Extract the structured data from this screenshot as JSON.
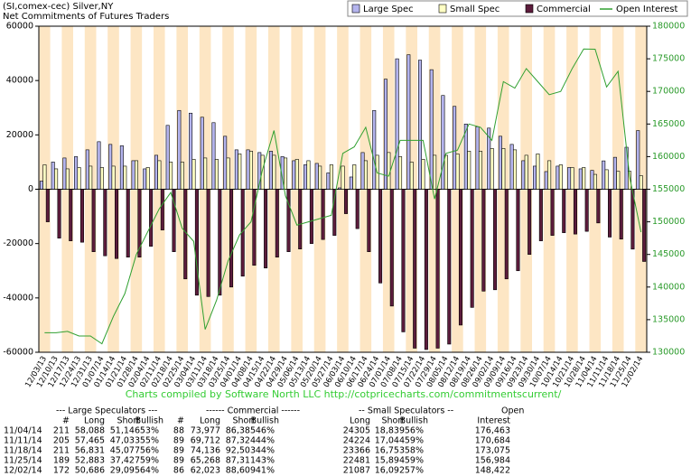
{
  "chart_data": {
    "type": "bar",
    "title": "(SI,comex-cec) Silver,NY",
    "subtitle": "Net Commitments of Futures Traders",
    "credit": "Charts compiled by Software North LLC  http://cotpricecharts.com/commitmentscurrent/",
    "categories": [
      "12/03/13",
      "12/10/13",
      "12/17/13",
      "12/24/13",
      "12/31/13",
      "01/07/14",
      "01/14/14",
      "01/21/14",
      "01/28/14",
      "02/04/14",
      "02/11/14",
      "02/18/14",
      "02/25/14",
      "03/04/14",
      "03/11/14",
      "03/18/14",
      "03/25/14",
      "04/01/14",
      "04/08/14",
      "04/15/14",
      "04/22/14",
      "04/29/14",
      "05/06/14",
      "05/13/14",
      "05/20/14",
      "05/27/14",
      "06/03/14",
      "06/10/14",
      "06/17/14",
      "06/24/14",
      "07/01/14",
      "07/08/14",
      "07/15/14",
      "07/22/14",
      "07/29/14",
      "08/05/14",
      "08/12/14",
      "08/19/14",
      "08/26/14",
      "09/02/14",
      "09/09/14",
      "09/16/14",
      "09/23/14",
      "09/30/14",
      "10/07/14",
      "10/14/14",
      "10/21/14",
      "10/28/14",
      "11/04/14",
      "11/11/14",
      "11/18/14",
      "11/25/14",
      "12/02/14"
    ],
    "series": [
      {
        "name": "Large Spec",
        "color": "#b4b4ee",
        "values": [
          3000,
          10000,
          11500,
          12000,
          14500,
          17500,
          16500,
          16000,
          10500,
          7500,
          12500,
          23500,
          29000,
          28000,
          26500,
          24500,
          19500,
          14500,
          14500,
          13500,
          14000,
          12000,
          10500,
          9000,
          9500,
          6000,
          500,
          4500,
          13500,
          29000,
          40500,
          48000,
          49500,
          47500,
          44000,
          34500,
          30500,
          24000,
          23000,
          22500,
          19500,
          16500,
          10500,
          8500,
          6500,
          8500,
          8000,
          7500,
          6942,
          10432,
          11754,
          15456,
          21591
        ]
      },
      {
        "name": "Small Spec",
        "color": "#ffffc4",
        "values": [
          9000,
          7500,
          7500,
          8000,
          8500,
          8000,
          8500,
          8500,
          10500,
          8000,
          10500,
          10000,
          10000,
          11000,
          11500,
          11000,
          11500,
          13000,
          14000,
          12500,
          12500,
          11500,
          11000,
          10500,
          8500,
          9000,
          8500,
          9000,
          10500,
          12500,
          13500,
          12000,
          10000,
          11000,
          12500,
          12500,
          13000,
          14000,
          14000,
          15000,
          15000,
          14500,
          12500,
          13000,
          10500,
          9000,
          8000,
          8000,
          5466,
          7180,
          6613,
          6587,
          4995
        ]
      },
      {
        "name": "Commercial",
        "color": "#5c1c3c",
        "values": [
          -12000,
          -18000,
          -19000,
          -19500,
          -23000,
          -24500,
          -25500,
          -25000,
          -25000,
          -21000,
          -15000,
          -23000,
          -33000,
          -39000,
          -39500,
          -39000,
          -36000,
          -32000,
          -28000,
          -29000,
          -25000,
          -23000,
          -22000,
          -20000,
          -18500,
          -17000,
          -9000,
          -14500,
          -23000,
          -34500,
          -43000,
          -52500,
          -58500,
          -59000,
          -58500,
          -57000,
          -50000,
          -43500,
          -37500,
          -37000,
          -33000,
          -30000,
          -24000,
          -19000,
          -17000,
          -16000,
          -16500,
          -15500,
          -12408,
          -17612,
          -18367,
          -22043,
          -26586
        ]
      },
      {
        "name": "Open Interest",
        "type": "line",
        "axis": "y2",
        "color": "#30a030",
        "values": [
          133000,
          133000,
          133200,
          132500,
          132500,
          131300,
          135500,
          139000,
          145000,
          148500,
          152000,
          154500,
          149000,
          147000,
          133500,
          138000,
          144000,
          148000,
          150000,
          158000,
          164000,
          154000,
          149500,
          150000,
          150500,
          151000,
          160500,
          161500,
          164500,
          157500,
          157000,
          162500,
          162500,
          162500,
          153500,
          160500,
          161000,
          165000,
          164500,
          162500,
          171500,
          170500,
          173500,
          171500,
          169500,
          170000,
          173500,
          176500,
          176463,
          170684,
          173075,
          156984,
          148422
        ]
      }
    ],
    "ylim": [
      -60000,
      60000
    ],
    "yticks": [
      -60000,
      -40000,
      -20000,
      0,
      20000,
      40000,
      60000
    ],
    "y2lim": [
      130000,
      180000
    ],
    "y2ticks": [
      130000,
      135000,
      140000,
      145000,
      150000,
      155000,
      160000,
      165000,
      170000,
      175000,
      180000
    ],
    "stripe_colors": [
      "#fde6c4",
      "#ffffff"
    ]
  },
  "table": {
    "groups": [
      "--- Large Speculators ---",
      "------ Commercial ------",
      "-- Small Speculators --",
      "Open"
    ],
    "columns": [
      "#",
      "Long",
      "Short",
      "Bullish",
      "#",
      "Long",
      "Short",
      "Bullish",
      "Long",
      "Short",
      "Bullish",
      "Interest"
    ],
    "rows": [
      [
        "11/04/14",
        "211",
        "58,088",
        "51,146",
        "53%",
        "88",
        "73,977",
        "86,385",
        "46%",
        "24305",
        "18,839",
        "56%",
        "176,463"
      ],
      [
        "11/11/14",
        "205",
        "57,465",
        "47,033",
        "55%",
        "89",
        "69,712",
        "87,324",
        "44%",
        "24224",
        "17,044",
        "59%",
        "170,684"
      ],
      [
        "11/18/14",
        "211",
        "56,831",
        "45,077",
        "56%",
        "89",
        "74,136",
        "92,503",
        "44%",
        "23366",
        "16,753",
        "58%",
        "173,075"
      ],
      [
        "11/25/14",
        "189",
        "52,883",
        "37,427",
        "59%",
        "89",
        "65,268",
        "87,311",
        "43%",
        "22481",
        "15,894",
        "59%",
        "156,984"
      ],
      [
        "12/02/14",
        "172",
        "50,686",
        "29,095",
        "64%",
        "86",
        "62,023",
        "88,609",
        "41%",
        "21087",
        "16,092",
        "57%",
        "148,422"
      ]
    ]
  }
}
